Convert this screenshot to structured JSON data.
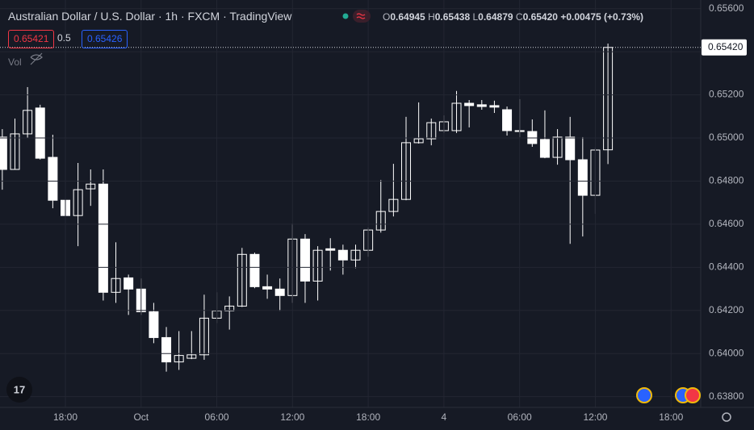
{
  "header": {
    "title": "Australian Dollar / U.S. Dollar · 1h · FXCM · TradingView",
    "ohlc": [
      {
        "key": "O",
        "value": "0.64945"
      },
      {
        "key": "H",
        "value": "0.65438"
      },
      {
        "key": "L",
        "value": "0.64879"
      },
      {
        "key": "C",
        "value": "0.65420"
      }
    ],
    "change": "+0.00475 (+0.73%)",
    "bid": "0.65421",
    "spread": "0.5",
    "ask": "0.65426",
    "volume_label": "Vol"
  },
  "chart_data": {
    "type": "candlestick",
    "categories": [
      null,
      null,
      null,
      null,
      null,
      "18:00",
      null,
      null,
      null,
      null,
      null,
      "Oct",
      null,
      null,
      null,
      null,
      null,
      "06:00",
      null,
      null,
      null,
      null,
      null,
      "12:00",
      null,
      null,
      null,
      null,
      null,
      "18:00",
      null,
      null,
      null,
      null,
      null,
      "4",
      null,
      null,
      null,
      null,
      null,
      "06:00",
      null,
      null,
      null,
      null,
      null,
      "12:00",
      null,
      null,
      null,
      null,
      null,
      "18:00"
    ],
    "open": [
      0.65004,
      0.64854,
      0.65019,
      0.65139,
      0.6491,
      0.64711,
      0.6464,
      0.64764,
      0.64786,
      0.64284,
      0.64351,
      0.64299,
      0.64194,
      0.64074,
      0.63961,
      0.63978,
      0.63994,
      0.64164,
      0.64198,
      0.6422,
      0.6446,
      0.6431,
      0.64299,
      0.64269,
      0.64531,
      0.64336,
      0.64486,
      0.64479,
      0.64434,
      0.64479,
      0.64573,
      0.64659,
      0.64715,
      0.64978,
      0.64996,
      0.65034,
      0.65034,
      0.65161,
      0.65154,
      0.6515,
      0.65131,
      0.65034,
      0.6503,
      0.64993,
      0.6491,
      0.65004,
      0.64899,
      0.64734,
      0.64945,
      null,
      null,
      null,
      null,
      null
    ],
    "high": [
      0.65041,
      0.6509,
      0.65236,
      0.65154,
      0.65015,
      0.64723,
      0.64884,
      0.64854,
      0.64854,
      0.64516,
      0.64366,
      0.64348,
      0.64235,
      0.64123,
      0.64104,
      0.64104,
      0.64273,
      0.64284,
      0.64265,
      0.6449,
      0.64468,
      0.64366,
      0.64348,
      0.64603,
      0.64554,
      0.64498,
      0.64535,
      0.64505,
      0.64505,
      0.64584,
      0.64805,
      0.6488,
      0.65098,
      0.65165,
      0.6509,
      0.65105,
      0.65218,
      0.65176,
      0.65176,
      0.65173,
      0.65146,
      0.6518,
      0.65086,
      0.65128,
      0.65041,
      0.65098,
      0.65004,
      0.64955,
      0.65438,
      null,
      null,
      null,
      null,
      null
    ],
    "low": [
      0.6476,
      0.64854,
      0.65,
      0.649,
      0.64674,
      0.64621,
      0.64498,
      0.64685,
      0.64246,
      0.64235,
      0.64179,
      0.64179,
      0.64048,
      0.63916,
      0.63924,
      0.63974,
      0.63971,
      0.64141,
      0.64111,
      0.64216,
      0.64303,
      0.64254,
      0.64198,
      0.64235,
      0.64235,
      0.64246,
      0.64385,
      0.64366,
      0.64396,
      0.64449,
      0.64561,
      0.64636,
      0.64711,
      0.64974,
      0.64966,
      0.65023,
      0.65023,
      0.65049,
      0.65131,
      0.65116,
      0.65011,
      0.65004,
      0.64959,
      0.64906,
      0.64876,
      0.64509,
      0.64543,
      0.64648,
      0.64879,
      null,
      null,
      null,
      null,
      null
    ],
    "close": [
      0.64854,
      0.65019,
      0.65128,
      0.64906,
      0.64711,
      0.6464,
      0.6476,
      0.64786,
      0.64284,
      0.64348,
      0.64299,
      0.64194,
      0.64074,
      0.63961,
      0.63991,
      0.63994,
      0.64164,
      0.64198,
      0.6422,
      0.6446,
      0.6431,
      0.64299,
      0.64269,
      0.64531,
      0.64336,
      0.64479,
      0.64479,
      0.64434,
      0.64479,
      0.64573,
      0.64659,
      0.64715,
      0.64978,
      0.64996,
      0.65071,
      0.65075,
      0.65161,
      0.6515,
      0.65146,
      0.65143,
      0.65034,
      0.6503,
      0.64974,
      0.6491,
      0.65004,
      0.64899,
      0.64734,
      0.64944,
      0.6542,
      null,
      null,
      null,
      null,
      null
    ],
    "up_color": "#ffffff",
    "down_color": "#ffffff",
    "ylim": [
      0.6375,
      0.6564
    ],
    "yticks": [
      {
        "value": 0.638,
        "label": "0.63800"
      },
      {
        "value": 0.64,
        "label": "0.64000"
      },
      {
        "value": 0.642,
        "label": "0.64200"
      },
      {
        "value": 0.644,
        "label": "0.64400"
      },
      {
        "value": 0.646,
        "label": "0.64600"
      },
      {
        "value": 0.648,
        "label": "0.64800"
      },
      {
        "value": 0.65,
        "label": "0.65000"
      },
      {
        "value": 0.652,
        "label": "0.65200"
      },
      {
        "value": 0.654,
        "label": "0.65400"
      },
      {
        "value": 0.656,
        "label": "0.65600"
      }
    ],
    "last_price_label": "0.65420",
    "grid": true
  }
}
